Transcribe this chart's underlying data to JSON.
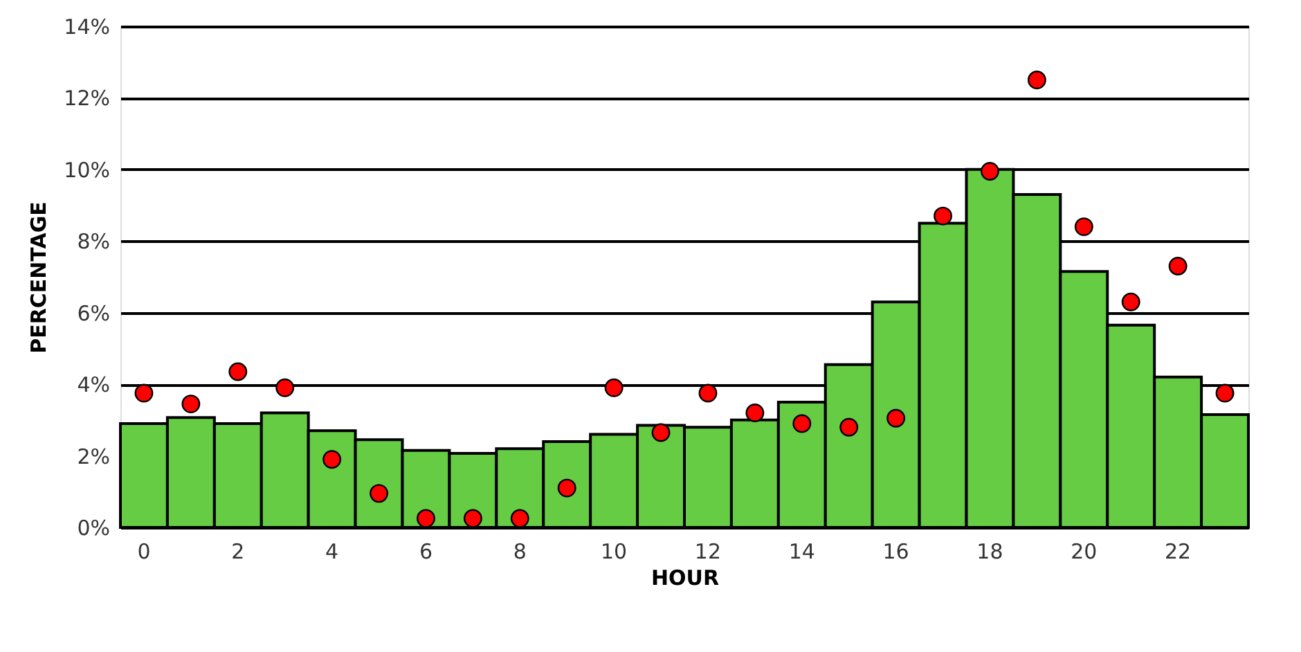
{
  "chart_data": {
    "type": "bar",
    "xlabel": "HOUR",
    "ylabel": "PERCENTAGE",
    "categories": [
      "0",
      null,
      "2",
      null,
      "4",
      null,
      "6",
      null,
      "8",
      null,
      "10",
      null,
      "12",
      null,
      "14",
      null,
      "16",
      null,
      "18",
      null,
      "20",
      null,
      "22",
      null
    ],
    "series": [
      {
        "color": "#66cc44",
        "values": [
          2.9,
          3.07,
          2.9,
          3.2,
          2.7,
          2.45,
          2.15,
          2.07,
          2.2,
          2.4,
          2.6,
          2.85,
          2.8,
          3.0,
          3.5,
          4.55,
          6.3,
          8.5,
          10.0,
          9.3,
          7.15,
          5.65,
          4.2,
          3.15
        ]
      },
      {
        "type": "scatter",
        "color": "#ff0000",
        "marker": "circle",
        "values": [
          3.75,
          3.45,
          4.35,
          3.9,
          1.9,
          0.95,
          0.25,
          0.25,
          0.25,
          1.1,
          3.9,
          2.65,
          3.75,
          3.2,
          2.9,
          2.8,
          3.05,
          8.7,
          9.95,
          12.5,
          8.4,
          6.3,
          7.3,
          3.75
        ]
      }
    ],
    "ylim": [
      0,
      14
    ],
    "yticks": [
      {
        "value": 0,
        "label": "0%"
      },
      {
        "value": 2,
        "label": "2%"
      },
      {
        "value": 4,
        "label": "4%"
      },
      {
        "value": 6,
        "label": "6%"
      },
      {
        "value": 8,
        "label": "8%"
      },
      {
        "value": 10,
        "label": "10%"
      },
      {
        "value": 12,
        "label": "12%"
      },
      {
        "value": 14,
        "label": "14%"
      }
    ],
    "grid": "y",
    "legend": false
  }
}
